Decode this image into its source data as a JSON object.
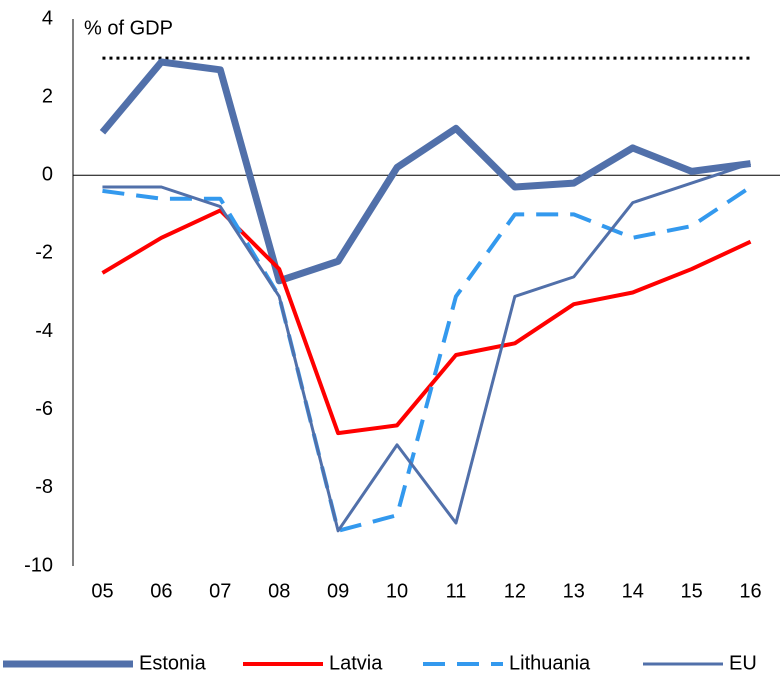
{
  "chart_data": {
    "type": "line",
    "y_axis_label": "% of GDP",
    "categories": [
      "05",
      "06",
      "07",
      "08",
      "09",
      "10",
      "11",
      "12",
      "13",
      "14",
      "15",
      "16"
    ],
    "series": [
      {
        "name": "Estonia",
        "color": "#5170aa",
        "width": 7,
        "dash": "solid",
        "values": [
          1.1,
          2.9,
          2.7,
          -2.7,
          -2.2,
          0.2,
          1.2,
          -0.3,
          -0.2,
          0.7,
          0.1,
          0.3
        ]
      },
      {
        "name": "Latvia",
        "color": "#ff0000",
        "width": 4,
        "dash": "solid",
        "values": [
          -2.5,
          -1.6,
          -0.9,
          -2.4,
          -6.6,
          -6.4,
          -4.6,
          -4.3,
          -3.3,
          -3.0,
          -2.4,
          -1.7
        ]
      },
      {
        "name": "Lithuania",
        "color": "#3399ee",
        "width": 4,
        "dash": "dashed",
        "values": [
          -0.4,
          -0.6,
          -0.6,
          -3.1,
          -9.1,
          -8.7,
          -3.1,
          -1.0,
          -1.0,
          -1.6,
          -1.3,
          -0.3
        ]
      },
      {
        "name": "EU",
        "color": "#5170aa",
        "width": 3,
        "dash": "solid",
        "values": [
          -0.3,
          -0.3,
          -0.8,
          -3.1,
          -9.1,
          -6.9,
          -8.9,
          -3.1,
          -2.6,
          -0.7,
          -0.2,
          0.3
        ]
      }
    ],
    "threshold": 3,
    "ylim": [
      -10,
      4
    ],
    "yticks": [
      4,
      2,
      0,
      -2,
      -4,
      -6,
      -8,
      -10
    ],
    "grid": false,
    "legend": "bottom"
  }
}
